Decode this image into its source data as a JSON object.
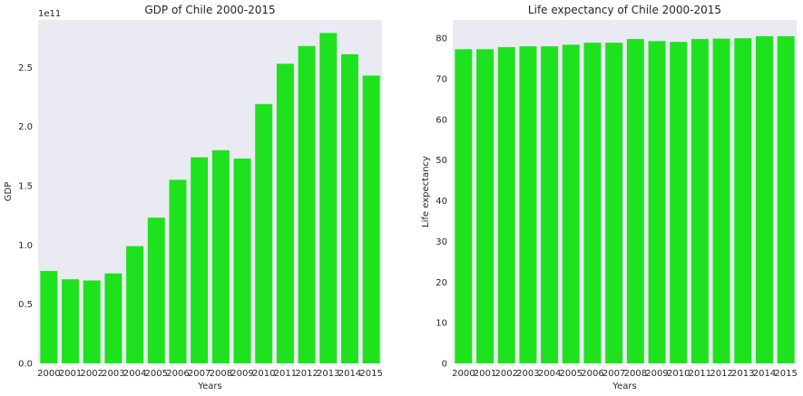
{
  "chart_data": [
    {
      "type": "bar",
      "title": "GDP of Chile 2000-2015",
      "xlabel": "Years",
      "ylabel": "GDP",
      "y_offset_label": "1e11",
      "y_scale": 100000000000,
      "ylim": [
        0,
        290000000000
      ],
      "yticks": [
        0,
        50000000000,
        100000000000,
        150000000000,
        200000000000,
        250000000000
      ],
      "ytick_labels": [
        "0.0",
        "0.5",
        "1.0",
        "1.5",
        "2.0",
        "2.5"
      ],
      "grid": false,
      "background": "#eaeaf2",
      "bar_color": "#1ee21e",
      "categories": [
        "2000",
        "2001",
        "2002",
        "2003",
        "2004",
        "2005",
        "2006",
        "2007",
        "2008",
        "2009",
        "2010",
        "2011",
        "2012",
        "2013",
        "2014",
        "2015"
      ],
      "values": [
        78000000000,
        71000000000,
        70000000000,
        76000000000,
        99000000000,
        123000000000,
        155000000000,
        174000000000,
        180000000000,
        173000000000,
        219000000000,
        253000000000,
        268000000000,
        279000000000,
        261000000000,
        243000000000
      ]
    },
    {
      "type": "bar",
      "title": "Life expectancy of Chile 2000-2015",
      "xlabel": "Years",
      "ylabel": "Life expectancy",
      "ylim": [
        0,
        84.5
      ],
      "yticks": [
        0,
        10,
        20,
        30,
        40,
        50,
        60,
        70,
        80
      ],
      "ytick_labels": [
        "0",
        "10",
        "20",
        "30",
        "40",
        "50",
        "60",
        "70",
        "80"
      ],
      "grid": false,
      "background": "#eaeaf2",
      "bar_color": "#1ee21e",
      "categories": [
        "2000",
        "2001",
        "2002",
        "2003",
        "2004",
        "2005",
        "2006",
        "2007",
        "2008",
        "2009",
        "2010",
        "2011",
        "2012",
        "2013",
        "2014",
        "2015"
      ],
      "values": [
        77.3,
        77.3,
        77.8,
        78.0,
        78.0,
        78.4,
        78.9,
        78.9,
        79.8,
        79.3,
        79.1,
        79.8,
        79.9,
        80.0,
        80.5,
        80.5
      ]
    }
  ]
}
